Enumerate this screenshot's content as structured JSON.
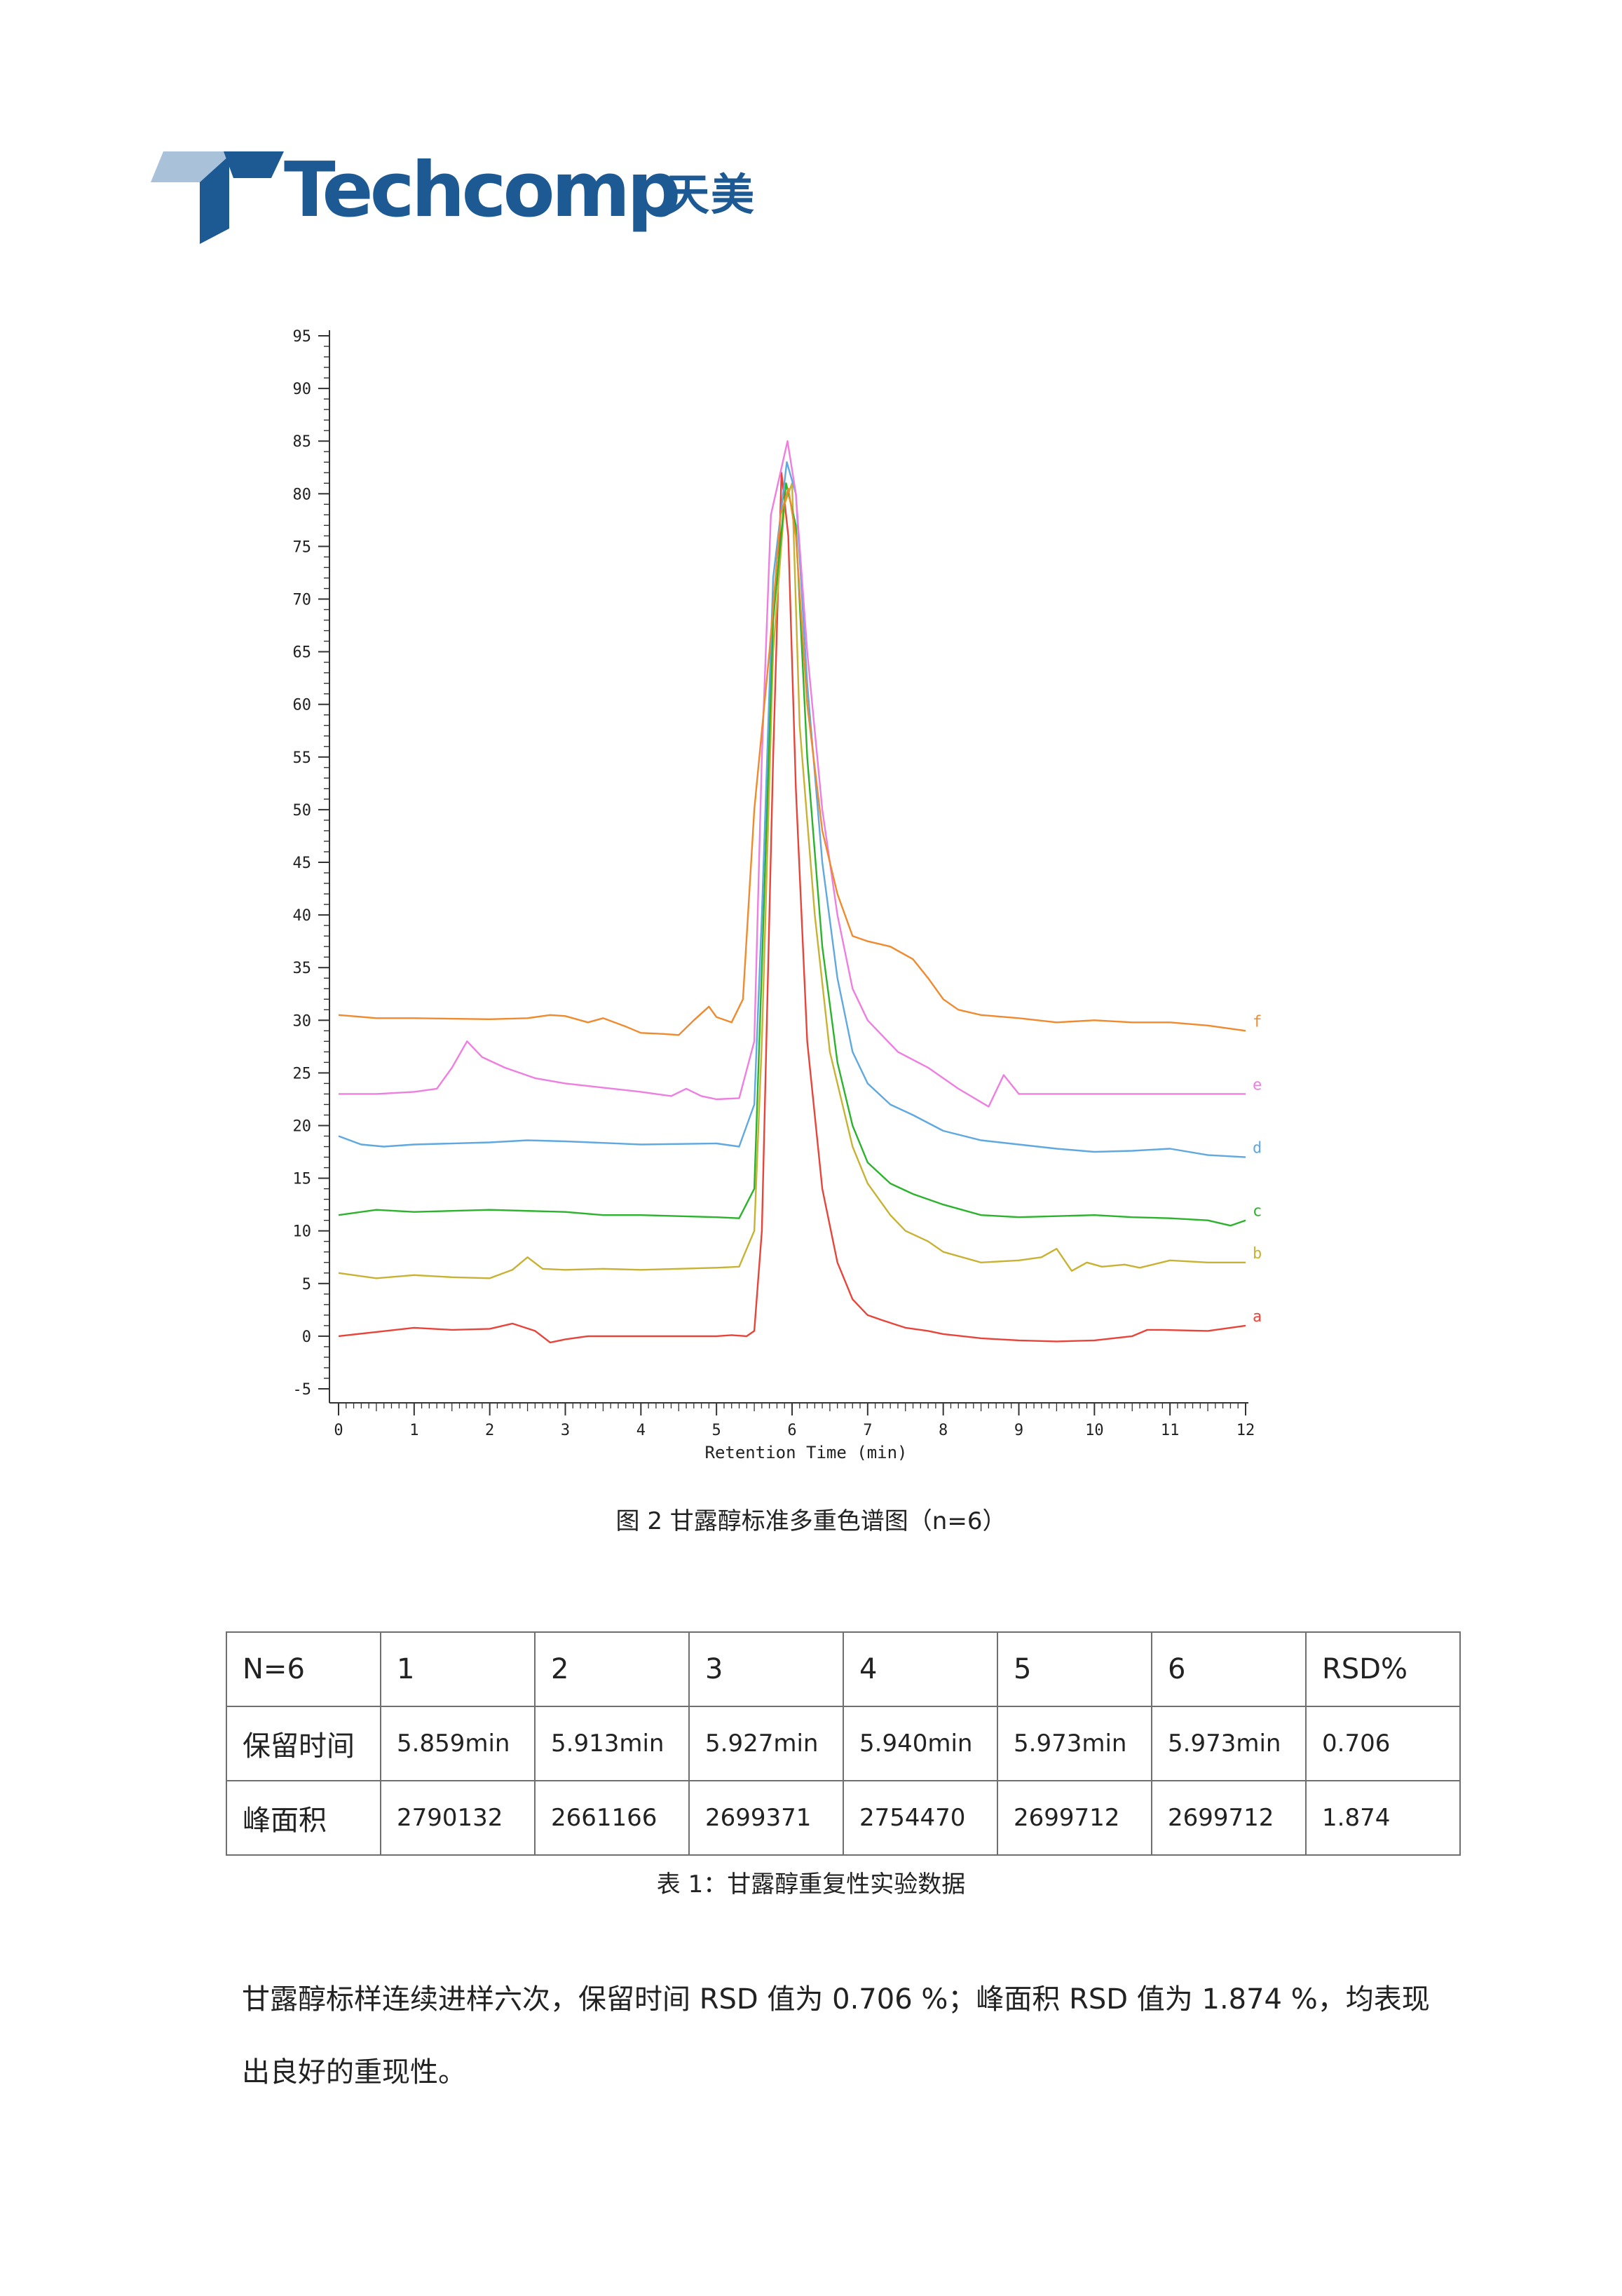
{
  "logo": {
    "wordmark": "Techcomp",
    "chinese": "天美"
  },
  "chart_data": {
    "type": "line",
    "xlabel": "Retention Time (min)",
    "ylabel": "",
    "xlim": [
      0,
      12
    ],
    "ylim": [
      -5,
      95
    ],
    "x_ticks": [
      "0",
      "1",
      "2",
      "3",
      "4",
      "5",
      "6",
      "7",
      "8",
      "9",
      "10",
      "11",
      "12"
    ],
    "y_ticks": [
      "95",
      "90",
      "85",
      "80",
      "75",
      "70",
      "65",
      "60",
      "55",
      "50",
      "45",
      "40",
      "35",
      "30",
      "25",
      "20",
      "15",
      "10",
      "5",
      "0",
      "-5"
    ],
    "grid": false,
    "legend": "inline at right end of each trace",
    "series": [
      {
        "name": "a",
        "color": "#e8443a",
        "x": [
          0,
          0.5,
          1,
          1.5,
          2,
          2.3,
          2.6,
          2.8,
          3,
          3.3,
          4,
          5,
          5.2,
          5.4,
          5.5,
          5.6,
          5.75,
          5.86,
          5.95,
          6.05,
          6.2,
          6.4,
          6.6,
          6.8,
          7,
          7.2,
          7.5,
          7.8,
          8,
          8.5,
          9,
          9.5,
          10,
          10.5,
          10.7,
          10.9,
          11.5,
          12
        ],
        "y": [
          0,
          0.4,
          0.8,
          0.6,
          0.7,
          1.2,
          0.5,
          -0.6,
          -0.3,
          0,
          0,
          0,
          0.1,
          0,
          0.5,
          10,
          55,
          82,
          76,
          52,
          28,
          14,
          7,
          3.5,
          2,
          1.5,
          0.8,
          0.5,
          0.2,
          -0.2,
          -0.4,
          -0.5,
          -0.4,
          0,
          0.6,
          0.6,
          0.5,
          1
        ]
      },
      {
        "name": "b",
        "color": "#c8b233",
        "x": [
          0,
          0.5,
          1,
          1.5,
          2,
          2.3,
          2.5,
          2.7,
          3,
          3.5,
          4,
          5,
          5.3,
          5.5,
          5.6,
          5.75,
          5.9,
          6.0,
          6.1,
          6.3,
          6.5,
          6.8,
          7,
          7.3,
          7.5,
          7.8,
          8,
          8.5,
          9,
          9.3,
          9.5,
          9.7,
          9.9,
          10.1,
          10.4,
          10.6,
          11,
          11.5,
          12
        ],
        "y": [
          6,
          5.5,
          5.8,
          5.6,
          5.5,
          6.3,
          7.5,
          6.4,
          6.3,
          6.4,
          6.3,
          6.5,
          6.6,
          10,
          28,
          65,
          79,
          81,
          58,
          40,
          27,
          18,
          14.5,
          11.5,
          10,
          9,
          8,
          7,
          7.2,
          7.5,
          8.3,
          6.2,
          7,
          6.6,
          6.8,
          6.5,
          7.2,
          7,
          7
        ]
      },
      {
        "name": "c",
        "color": "#2bb32b",
        "x": [
          0,
          0.5,
          1,
          2,
          3,
          3.5,
          4,
          5,
          5.3,
          5.5,
          5.6,
          5.75,
          5.92,
          6.05,
          6.2,
          6.4,
          6.6,
          6.8,
          7,
          7.3,
          7.6,
          8,
          8.5,
          9,
          10,
          10.5,
          11,
          11.5,
          11.8,
          12
        ],
        "y": [
          11.5,
          12,
          11.8,
          12,
          11.8,
          11.5,
          11.5,
          11.3,
          11.2,
          14,
          35,
          68,
          81,
          77,
          55,
          37,
          26,
          20,
          16.5,
          14.5,
          13.5,
          12.5,
          11.5,
          11.3,
          11.5,
          11.3,
          11.2,
          11,
          10.5,
          11
        ]
      },
      {
        "name": "d",
        "color": "#5fa8e0",
        "x": [
          0,
          0.3,
          0.6,
          1,
          2,
          2.5,
          3,
          4,
          5,
          5.3,
          5.5,
          5.6,
          5.75,
          5.93,
          6.05,
          6.2,
          6.4,
          6.6,
          6.8,
          7,
          7.3,
          7.6,
          8,
          8.5,
          9,
          9.5,
          10,
          10.5,
          11,
          11.5,
          12
        ],
        "y": [
          19,
          18.2,
          18,
          18.2,
          18.4,
          18.6,
          18.5,
          18.2,
          18.3,
          18,
          22,
          40,
          72,
          83,
          80,
          62,
          45,
          34,
          27,
          24,
          22,
          21,
          19.5,
          18.6,
          18.2,
          17.8,
          17.5,
          17.6,
          17.8,
          17.2,
          17
        ]
      },
      {
        "name": "e",
        "color": "#ee7ee0",
        "x": [
          0,
          0.5,
          1,
          1.3,
          1.5,
          1.7,
          1.9,
          2.2,
          2.6,
          3,
          3.5,
          4,
          4.4,
          4.6,
          4.8,
          5,
          5.3,
          5.5,
          5.6,
          5.72,
          5.94,
          6.05,
          6.2,
          6.4,
          6.6,
          6.8,
          7,
          7.4,
          7.8,
          8.2,
          8.6,
          8.8,
          9,
          9.5,
          10,
          10.5,
          11,
          11.5,
          12
        ],
        "y": [
          23,
          23,
          23.2,
          23.5,
          25.5,
          28,
          26.5,
          25.5,
          24.5,
          24,
          23.6,
          23.2,
          22.8,
          23.5,
          22.8,
          22.5,
          22.6,
          28,
          55,
          78,
          85,
          80,
          65,
          50,
          40,
          33,
          30,
          27,
          25.5,
          23.5,
          21.8,
          24.8,
          23,
          23,
          23,
          23,
          23,
          23,
          23
        ]
      },
      {
        "name": "f",
        "color": "#f08a2e",
        "x": [
          0,
          0.5,
          1,
          2,
          2.5,
          2.8,
          3,
          3.3,
          3.5,
          3.8,
          4,
          4.3,
          4.5,
          4.7,
          4.9,
          5,
          5.2,
          5.35,
          5.5,
          5.7,
          5.85,
          5.95,
          6.05,
          6.2,
          6.4,
          6.6,
          6.8,
          7,
          7.3,
          7.6,
          7.8,
          8,
          8.2,
          8.5,
          9,
          9.5,
          10,
          10.5,
          11,
          11.5,
          12
        ],
        "y": [
          30.5,
          30.2,
          30.2,
          30.1,
          30.2,
          30.5,
          30.4,
          29.8,
          30.2,
          29.4,
          28.8,
          28.7,
          28.6,
          30,
          31.3,
          30.3,
          29.8,
          32,
          50,
          65,
          78,
          80.5,
          76,
          60,
          48,
          42,
          38,
          37.5,
          37,
          35.8,
          34,
          32,
          31,
          30.5,
          30.2,
          29.8,
          30,
          29.8,
          29.8,
          29.5,
          29
        ]
      }
    ]
  },
  "figure_caption": "图 2 甘露醇标准多重色谱图（n=6）",
  "table": {
    "header": [
      "N=6",
      "1",
      "2",
      "3",
      "4",
      "5",
      "6",
      "RSD%"
    ],
    "rows": [
      [
        "保留时间",
        "5.859min",
        "5.913min",
        "5.927min",
        "5.940min",
        "5.973min",
        "5.973min",
        "0.706"
      ],
      [
        "峰面积",
        "2790132",
        "2661166",
        "2699371",
        "2754470",
        "2699712",
        "2699712",
        "1.874"
      ]
    ]
  },
  "table_caption": "表 1：甘露醇重复性实验数据",
  "summary": {
    "line1": "甘露醇标样连续进样六次，保留时间 RSD 值为 0.706 %；峰面积 RSD 值为 1.874 %，均表现",
    "line2": "出良好的重现性。"
  }
}
